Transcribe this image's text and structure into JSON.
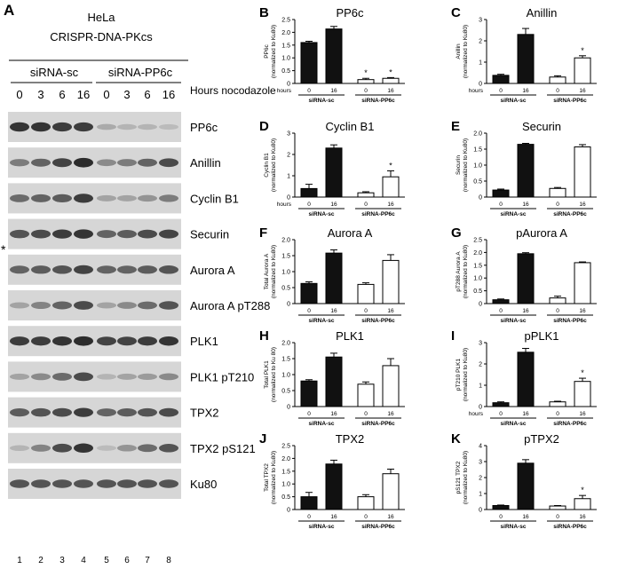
{
  "blot": {
    "panel_letter": "A",
    "cell_line": "HeLa",
    "genotype": "CRISPR-DNA-PKcs",
    "groups": [
      "siRNA-sc",
      "siRNA-PP6c"
    ],
    "timepoints": [
      "0",
      "3",
      "6",
      "16",
      "0",
      "3",
      "6",
      "16"
    ],
    "timepoint_label": "Hours nocodazole",
    "lane_numbers": [
      "1",
      "2",
      "3",
      "4",
      "5",
      "6",
      "7",
      "8"
    ],
    "asterisk": "*",
    "bands": [
      {
        "label": "PP6c",
        "intensity": [
          0.9,
          0.9,
          0.85,
          0.85,
          0.15,
          0.1,
          0.1,
          0.05
        ]
      },
      {
        "label": "Anillin",
        "intensity": [
          0.45,
          0.6,
          0.8,
          0.95,
          0.35,
          0.45,
          0.6,
          0.75
        ]
      },
      {
        "label": "Cyclin B1",
        "intensity": [
          0.55,
          0.6,
          0.65,
          0.85,
          0.2,
          0.2,
          0.3,
          0.45
        ]
      },
      {
        "label": "Securin",
        "intensity": [
          0.7,
          0.75,
          0.85,
          0.9,
          0.6,
          0.65,
          0.75,
          0.8
        ]
      },
      {
        "label": "Aurora A",
        "intensity": [
          0.6,
          0.65,
          0.7,
          0.8,
          0.6,
          0.6,
          0.65,
          0.7
        ]
      },
      {
        "label": "Aurora A pT288",
        "intensity": [
          0.2,
          0.4,
          0.6,
          0.75,
          0.2,
          0.35,
          0.55,
          0.7
        ]
      },
      {
        "label": "PLK1",
        "intensity": [
          0.85,
          0.85,
          0.9,
          0.95,
          0.8,
          0.8,
          0.85,
          0.9
        ]
      },
      {
        "label": "PLK1 pT210",
        "intensity": [
          0.2,
          0.35,
          0.55,
          0.75,
          0.1,
          0.2,
          0.25,
          0.35
        ]
      },
      {
        "label": "TPX2",
        "intensity": [
          0.65,
          0.7,
          0.75,
          0.85,
          0.6,
          0.65,
          0.7,
          0.75
        ]
      },
      {
        "label": "TPX2 pS121",
        "intensity": [
          0.1,
          0.4,
          0.75,
          0.9,
          0.05,
          0.3,
          0.55,
          0.7
        ]
      },
      {
        "label": "Ku80",
        "intensity": [
          0.7,
          0.7,
          0.7,
          0.7,
          0.7,
          0.7,
          0.7,
          0.7
        ]
      }
    ]
  },
  "chart_data": [
    {
      "panel": "B",
      "type": "bar",
      "title": "PP6c",
      "ylabel": [
        "PP6c",
        "(normalized to Ku80)"
      ],
      "ylim": [
        0,
        2.5
      ],
      "yticks": [
        0,
        0.5,
        1.0,
        1.5,
        2.0,
        2.5
      ],
      "ytick_labels": [
        "0",
        "0.5",
        "1.0",
        "1.5",
        "2.0",
        "2.5"
      ],
      "xlabel": "hours",
      "x_ticks": [
        "0",
        "16",
        "0",
        "16"
      ],
      "groups": [
        "siRNA-sc",
        "siRNA-PP6c"
      ],
      "values": [
        1.6,
        2.13,
        0.15,
        0.2
      ],
      "errors": [
        0.05,
        0.1,
        0.05,
        0.03
      ],
      "significance": [
        "",
        "",
        "*",
        "*"
      ]
    },
    {
      "panel": "C",
      "type": "bar",
      "title": "Anillin",
      "ylabel": [
        "Anillin",
        "(normalized to Ku80)"
      ],
      "ylim": [
        0,
        3
      ],
      "yticks": [
        0,
        1,
        2,
        3
      ],
      "ytick_labels": [
        "0",
        "1",
        "2",
        "3"
      ],
      "xlabel": "hours",
      "x_ticks": [
        "0",
        "16",
        "0",
        "16"
      ],
      "groups": [
        "siRNA-sc",
        "siRNA-PP6c"
      ],
      "values": [
        0.38,
        2.3,
        0.3,
        1.2
      ],
      "errors": [
        0.05,
        0.28,
        0.06,
        0.1
      ],
      "significance": [
        "",
        "",
        "",
        "*"
      ]
    },
    {
      "panel": "D",
      "type": "bar",
      "title": "Cyclin B1",
      "ylabel": [
        "Cyclin B1",
        "(normalized to Ku80)"
      ],
      "ylim": [
        0,
        3
      ],
      "yticks": [
        0,
        1,
        2,
        3
      ],
      "ytick_labels": [
        "0",
        "1",
        "2",
        "3"
      ],
      "xlabel": "hours",
      "x_ticks": [
        "0",
        "16",
        "0",
        "16"
      ],
      "groups": [
        "siRNA-sc",
        "siRNA-PP6c"
      ],
      "values": [
        0.4,
        2.3,
        0.2,
        0.95
      ],
      "errors": [
        0.2,
        0.15,
        0.05,
        0.28
      ],
      "significance": [
        "",
        "",
        "",
        "*"
      ]
    },
    {
      "panel": "E",
      "type": "bar",
      "title": "Securin",
      "ylabel": [
        "Securin",
        "(normalized to Ku80)"
      ],
      "ylim": [
        0,
        2.0
      ],
      "yticks": [
        0,
        0.5,
        1.0,
        1.5,
        2.0
      ],
      "ytick_labels": [
        "0",
        "0.5",
        "1.0",
        "1.5",
        "2.0"
      ],
      "xlabel": "",
      "x_ticks": [
        "0",
        "16",
        "0",
        "16"
      ],
      "groups": [
        "siRNA-sc",
        "siRNA-PP6c"
      ],
      "values": [
        0.22,
        1.65,
        0.27,
        1.57
      ],
      "errors": [
        0.03,
        0.03,
        0.03,
        0.07
      ],
      "significance": [
        "",
        "",
        "",
        ""
      ]
    },
    {
      "panel": "F",
      "type": "bar",
      "title": "Aurora A",
      "ylabel": [
        "Total Aurora A",
        "(normalized to Ku80)"
      ],
      "ylim": [
        0,
        2.0
      ],
      "yticks": [
        0,
        0.5,
        1.0,
        1.5,
        2.0
      ],
      "ytick_labels": [
        "0",
        "0.5",
        "1.0",
        "1.5",
        "2.0"
      ],
      "xlabel": "",
      "x_ticks": [
        "0",
        "16",
        "0",
        "16"
      ],
      "groups": [
        "siRNA-sc",
        "siRNA-PP6c"
      ],
      "values": [
        0.63,
        1.58,
        0.6,
        1.35
      ],
      "errors": [
        0.05,
        0.1,
        0.05,
        0.18
      ],
      "significance": [
        "",
        "",
        "",
        ""
      ]
    },
    {
      "panel": "G",
      "type": "bar",
      "title": "pAurora A",
      "ylabel": [
        "pT288 Aurora A",
        "(normalized to Ku80)"
      ],
      "ylim": [
        0,
        2.5
      ],
      "yticks": [
        0,
        0.5,
        1.0,
        1.5,
        2.0,
        2.5
      ],
      "ytick_labels": [
        "0",
        "0.5",
        "1.0",
        "1.5",
        "2.0",
        "2.5"
      ],
      "xlabel": "",
      "x_ticks": [
        "0",
        "16",
        "0",
        "16"
      ],
      "groups": [
        "siRNA-sc",
        "siRNA-PP6c"
      ],
      "values": [
        0.15,
        1.95,
        0.22,
        1.6
      ],
      "errors": [
        0.03,
        0.04,
        0.07,
        0.03
      ],
      "significance": [
        "",
        "",
        "",
        ""
      ]
    },
    {
      "panel": "H",
      "type": "bar",
      "title": "PLK1",
      "ylabel": [
        "Total PLK1",
        "(normalized to Ku 80)"
      ],
      "ylim": [
        0,
        2.0
      ],
      "yticks": [
        0,
        0.5,
        1.0,
        1.5,
        2.0
      ],
      "ytick_labels": [
        "0",
        "0.5",
        "1.0",
        "1.5",
        "2.0"
      ],
      "xlabel": "",
      "x_ticks": [
        "0",
        "16",
        "0",
        "16"
      ],
      "groups": [
        "siRNA-sc",
        "siRNA-PP6c"
      ],
      "values": [
        0.8,
        1.55,
        0.7,
        1.28
      ],
      "errors": [
        0.04,
        0.12,
        0.07,
        0.22
      ],
      "significance": [
        "",
        "",
        "",
        ""
      ]
    },
    {
      "panel": "I",
      "type": "bar",
      "title": "pPLK1",
      "ylabel": [
        "pT210 PLK1",
        "(normalized to Ku80)"
      ],
      "ylim": [
        0,
        3
      ],
      "yticks": [
        0,
        1,
        2,
        3
      ],
      "ytick_labels": [
        "0",
        "1",
        "2",
        "3"
      ],
      "xlabel": "hours",
      "x_ticks": [
        "0",
        "16",
        "0",
        "16"
      ],
      "groups": [
        "siRNA-sc",
        "siRNA-PP6c"
      ],
      "values": [
        0.18,
        2.55,
        0.22,
        1.18
      ],
      "errors": [
        0.04,
        0.18,
        0.03,
        0.15
      ],
      "significance": [
        "",
        "",
        "",
        "*"
      ]
    },
    {
      "panel": "J",
      "type": "bar",
      "title": "TPX2",
      "ylabel": [
        "Total TPX2",
        "(normalized to Ku80)"
      ],
      "ylim": [
        0,
        2.5
      ],
      "yticks": [
        0,
        0.5,
        1.0,
        1.5,
        2.0,
        2.5
      ],
      "ytick_labels": [
        "0",
        "0.5",
        "1.0",
        "1.5",
        "2.0",
        "2.5"
      ],
      "xlabel": "",
      "x_ticks": [
        "0",
        "16",
        "0",
        "16"
      ],
      "groups": [
        "siRNA-sc",
        "siRNA-PP6c"
      ],
      "values": [
        0.5,
        1.78,
        0.5,
        1.4
      ],
      "errors": [
        0.17,
        0.15,
        0.08,
        0.18
      ],
      "significance": [
        "",
        "",
        "",
        ""
      ]
    },
    {
      "panel": "K",
      "type": "bar",
      "title": "pTPX2",
      "ylabel": [
        "pS121 TPX2",
        "(normalized to Ku80)"
      ],
      "ylim": [
        0,
        4
      ],
      "yticks": [
        0,
        1,
        2,
        3,
        4
      ],
      "ytick_labels": [
        "0",
        "1",
        "2",
        "3",
        "4"
      ],
      "xlabel": "",
      "x_ticks": [
        "0",
        "16",
        "0",
        "16"
      ],
      "groups": [
        "siRNA-sc",
        "siRNA-PP6c"
      ],
      "values": [
        0.25,
        2.9,
        0.22,
        0.68
      ],
      "errors": [
        0.03,
        0.22,
        0.03,
        0.2
      ],
      "significance": [
        "",
        "",
        "",
        "*"
      ]
    }
  ],
  "colors": {
    "control_bar": "#111111",
    "knockdown_bar": "#ffffff",
    "axis": "#000000",
    "blot_bg": "#d6d6d6",
    "band": "#1a1a1a"
  }
}
